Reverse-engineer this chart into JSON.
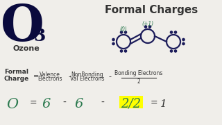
{
  "bg_color": "#f0eeea",
  "title_formal_charges": "Formal Charges",
  "O3_label": "O",
  "O3_sub": "3",
  "ozone_label": "Ozone",
  "formula_label1": "Formal",
  "formula_label2": "Charge",
  "eq_sign": "=",
  "valence_top": "Valence",
  "valence_bot": "Electrons",
  "minus": "-",
  "nonbonding_top": "NonBonding",
  "nonbonding_bot": "Val Electrons",
  "bonding_label": "Bonding Electrons",
  "bonding_denom": "2",
  "handwritten_O": "O",
  "handwritten_6a": "6",
  "handwritten_6b": "6",
  "handwritten_frac": "2/2",
  "highlight_color": "#ffff00",
  "dark_blue": "#1c1c5a",
  "teal_green": "#2d7a50",
  "dark_color": "#333333",
  "O_color": "#0a0a3d"
}
